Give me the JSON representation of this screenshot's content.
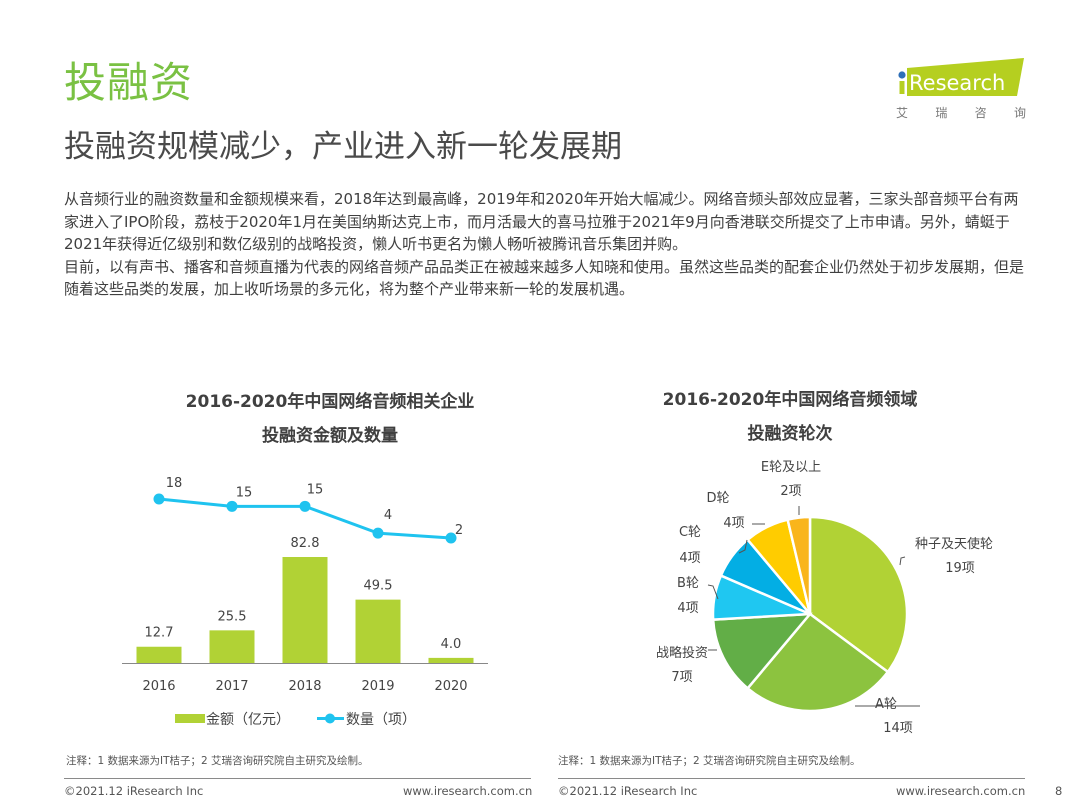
{
  "header": {
    "section_title": "投融资",
    "subtitle": "投融资规模减少，产业进入新一轮发展期",
    "logo_text": "iResearch",
    "logo_cn": [
      "艾",
      "瑞",
      "咨",
      "询"
    ],
    "brand_color": "#b5cf20",
    "logo_dot_color": "#2e6fb7"
  },
  "body": {
    "paragraph1": "从音频行业的融资数量和金额规模来看，2018年达到最高峰，2019年和2020年开始大幅减少。网络音频头部效应显著，三家头部音频平台有两家进入了IPO阶段，荔枝于2020年1月在美国纳斯达克上市，而月活最大的喜马拉雅于2021年9月向香港联交所提交了上市申请。另外，蜻蜓于2021年获得近亿级别和数亿级别的战略投资，懒人听书更名为懒人畅听被腾讯音乐集团并购。",
    "paragraph2": "目前，以有声书、播客和音频直播为代表的网络音频产品品类正在被越来越多人知晓和使用。虽然这些品类的配套企业仍然处于初步发展期，但是随着这些品类的发展，加上收听场景的多元化，将为整个产业带来新一轮的发展机遇。"
  },
  "chart_data": [
    {
      "type": "bar",
      "title_line1": "2016-2020年中国网络音频相关企业",
      "title_line2": "投融资金额及数量",
      "categories": [
        "2016",
        "2017",
        "2018",
        "2019",
        "2020"
      ],
      "series": [
        {
          "name": "金额（亿元）",
          "kind": "bar",
          "color": "#b1d235",
          "values": [
            12.7,
            25.5,
            82.8,
            49.5,
            4.0
          ],
          "labels": [
            "12.7",
            "25.5",
            "82.8",
            "49.5",
            "4.0"
          ]
        },
        {
          "name": "数量（项）",
          "kind": "line",
          "color": "#1fc3ef",
          "values": [
            18,
            15,
            15,
            4,
            2
          ],
          "labels": [
            "18",
            "15",
            "15",
            "4",
            "2"
          ]
        }
      ],
      "xlabel": "",
      "ylabel": "",
      "grid": false,
      "legend_position": "bottom",
      "note": "注释：1 数据来源为IT桔子；2 艾瑞咨询研究院自主研究及绘制。"
    },
    {
      "type": "pie",
      "title_line1": "2016-2020年中国网络音频领域",
      "title_line2": "投融资轮次",
      "slices": [
        {
          "name": "种子及天使轮",
          "value": 19,
          "label": "19项",
          "color": "#b1d235"
        },
        {
          "name": "A轮",
          "value": 14,
          "label": "14项",
          "color": "#8cc33f"
        },
        {
          "name": "战略投资",
          "value": 7,
          "label": "7项",
          "color": "#62ae47"
        },
        {
          "name": "B轮",
          "value": 4,
          "label": "4项",
          "color": "#1fc7f1"
        },
        {
          "name": "C轮",
          "value": 4,
          "label": "4项",
          "color": "#03aee4"
        },
        {
          "name": "D轮",
          "value": 4,
          "label": "4项",
          "color": "#ffcc00"
        },
        {
          "name": "E轮及以上",
          "value": 2,
          "label": "2项",
          "color": "#f9b51c"
        }
      ],
      "note": "注释：1 数据来源为IT桔子；2 艾瑞咨询研究院自主研究及绘制。"
    }
  ],
  "footer": {
    "copyright_left": "©2021.12 iResearch Inc",
    "url_left": "www.iresearch.com.cn",
    "copyright_right": "©2021.12 iResearch Inc",
    "url_right": "www.iresearch.com.cn",
    "page_number": "8"
  }
}
